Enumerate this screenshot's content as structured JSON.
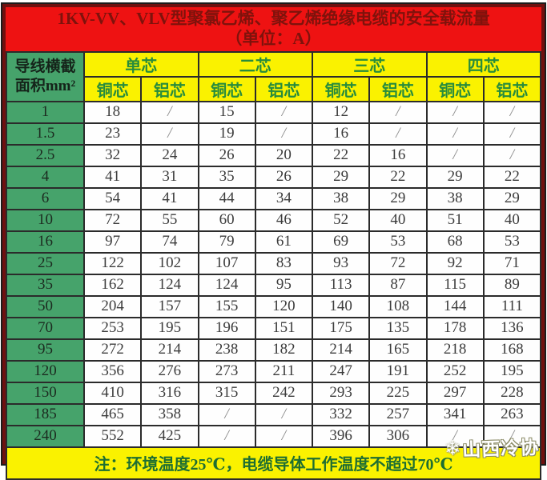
{
  "title": {
    "line1": "1KV-VV、VLV型聚氯乙烯、聚乙烯绝缘电缆的安全载流量",
    "line2": "（单位：A）"
  },
  "header": {
    "row_label_line1": "导线横截",
    "row_label_line2": "面积mm²",
    "core_groups": [
      "单芯",
      "二芯",
      "三芯",
      "四芯"
    ],
    "sub_headers": [
      "铜芯",
      "铝芯",
      "铜芯",
      "铝芯",
      "铜芯",
      "铝芯",
      "铜芯",
      "铝芯"
    ]
  },
  "rows": [
    {
      "size": "1",
      "values": [
        "18",
        "/",
        "15",
        "/",
        "12",
        "/",
        "/",
        "/"
      ]
    },
    {
      "size": "1.5",
      "values": [
        "23",
        "/",
        "19",
        "/",
        "16",
        "/",
        "/",
        "/"
      ]
    },
    {
      "size": "2.5",
      "values": [
        "32",
        "24",
        "26",
        "20",
        "22",
        "16",
        "/",
        "/"
      ]
    },
    {
      "size": "4",
      "values": [
        "41",
        "31",
        "35",
        "26",
        "29",
        "22",
        "29",
        "22"
      ]
    },
    {
      "size": "6",
      "values": [
        "54",
        "41",
        "44",
        "34",
        "38",
        "29",
        "38",
        "29"
      ]
    },
    {
      "size": "10",
      "values": [
        "72",
        "55",
        "60",
        "46",
        "52",
        "40",
        "51",
        "40"
      ]
    },
    {
      "size": "16",
      "values": [
        "97",
        "74",
        "79",
        "61",
        "69",
        "53",
        "68",
        "53"
      ]
    },
    {
      "size": "25",
      "values": [
        "122",
        "102",
        "107",
        "83",
        "93",
        "72",
        "92",
        "71"
      ]
    },
    {
      "size": "35",
      "values": [
        "162",
        "124",
        "124",
        "95",
        "113",
        "87",
        "115",
        "89"
      ]
    },
    {
      "size": "50",
      "values": [
        "204",
        "157",
        "155",
        "120",
        "140",
        "108",
        "144",
        "111"
      ]
    },
    {
      "size": "70",
      "values": [
        "253",
        "195",
        "196",
        "151",
        "175",
        "135",
        "178",
        "136"
      ]
    },
    {
      "size": "95",
      "values": [
        "272",
        "214",
        "238",
        "182",
        "214",
        "165",
        "218",
        "168"
      ]
    },
    {
      "size": "120",
      "values": [
        "356",
        "276",
        "273",
        "211",
        "247",
        "191",
        "252",
        "195"
      ]
    },
    {
      "size": "150",
      "values": [
        "410",
        "316",
        "315",
        "242",
        "293",
        "225",
        "297",
        "228"
      ]
    },
    {
      "size": "185",
      "values": [
        "465",
        "358",
        "/",
        "/",
        "332",
        "257",
        "341",
        "263"
      ]
    },
    {
      "size": "240",
      "values": [
        "552",
        "425",
        "/",
        "/",
        "396",
        "306",
        "/",
        "/"
      ]
    }
  ],
  "note": "注：环境温度25℃，电缆导体工作温度不超过70℃",
  "watermark": {
    "icon": "snowflake-icon",
    "text": "山西冷协"
  },
  "colors": {
    "frame_maroon": "#70100f",
    "title_red": "#ee1212",
    "title_text": "#7f120c",
    "header_green_bg": "#46a36b",
    "header_yellow_bg": "#faf200",
    "header_green_text": "#288c3c",
    "note_text_green": "#1e6e32",
    "grid_line": "#2b2b2b",
    "value_text": "#3c3c3c"
  }
}
